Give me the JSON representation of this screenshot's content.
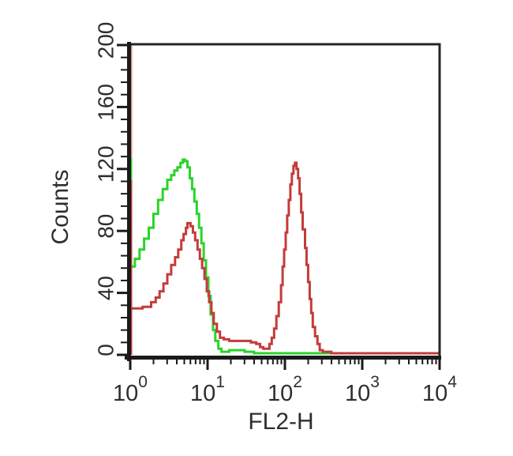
{
  "figure": {
    "background": "#ffffff",
    "plot_border_color": "#262626",
    "axis_color": "#1a1a1a",
    "tick_color": "#1a1a1a",
    "text_color": "#2e2e2e"
  },
  "chart_data": {
    "type": "line",
    "subtype": "flow-cytometry-histogram",
    "title": "",
    "xlabel": "FL2-H",
    "ylabel": "Counts",
    "x_scale": "log10",
    "x_range_log": [
      0,
      4
    ],
    "x_decades": [
      0,
      1,
      2,
      3,
      4
    ],
    "x_tick_labels": [
      {
        "base": "10",
        "exp": "0"
      },
      {
        "base": "10",
        "exp": "1"
      },
      {
        "base": "10",
        "exp": "2"
      },
      {
        "base": "10",
        "exp": "3"
      },
      {
        "base": "10",
        "exp": "4"
      }
    ],
    "x_minor_rule": "log positions 2-9 within each decade",
    "ylim": [
      0,
      200
    ],
    "y_major_step": 40,
    "y_minor_step": 8,
    "y_tick_labels": [
      "0",
      "40",
      "80",
      "120",
      "160",
      "200"
    ],
    "grid": false,
    "legend": "none",
    "series": [
      {
        "name": "green-control-trace",
        "color": "#2ad42a",
        "stroke_width": 3,
        "points_log10x_counts": [
          [
            0.01,
            57
          ],
          [
            0.06,
            62
          ],
          [
            0.12,
            68
          ],
          [
            0.18,
            75
          ],
          [
            0.24,
            82
          ],
          [
            0.3,
            91
          ],
          [
            0.36,
            100
          ],
          [
            0.42,
            107
          ],
          [
            0.48,
            113
          ],
          [
            0.53,
            116
          ],
          [
            0.57,
            119
          ],
          [
            0.61,
            121
          ],
          [
            0.65,
            124
          ],
          [
            0.68,
            126
          ],
          [
            0.71,
            125
          ],
          [
            0.74,
            121
          ],
          [
            0.77,
            114
          ],
          [
            0.8,
            107
          ],
          [
            0.83,
            99
          ],
          [
            0.86,
            91
          ],
          [
            0.89,
            82
          ],
          [
            0.92,
            72
          ],
          [
            0.95,
            61
          ],
          [
            0.98,
            50
          ],
          [
            1.01,
            38
          ],
          [
            1.04,
            26
          ],
          [
            1.07,
            16
          ],
          [
            1.1,
            9
          ],
          [
            1.14,
            4
          ],
          [
            1.18,
            2
          ],
          [
            1.28,
            3
          ],
          [
            1.38,
            3
          ],
          [
            1.48,
            2
          ],
          [
            1.6,
            1
          ],
          [
            2.0,
            1
          ],
          [
            2.5,
            1
          ],
          [
            3.0,
            1
          ],
          [
            3.5,
            1
          ],
          [
            4.0,
            1
          ]
        ]
      },
      {
        "name": "red-sample-trace",
        "color": "#c43b3b",
        "stroke_width": 3,
        "points_log10x_counts": [
          [
            0.01,
            30
          ],
          [
            0.1,
            30
          ],
          [
            0.16,
            31
          ],
          [
            0.21,
            31
          ],
          [
            0.27,
            34
          ],
          [
            0.33,
            37
          ],
          [
            0.38,
            41
          ],
          [
            0.43,
            46
          ],
          [
            0.48,
            52
          ],
          [
            0.53,
            58
          ],
          [
            0.58,
            63
          ],
          [
            0.62,
            68
          ],
          [
            0.66,
            74
          ],
          [
            0.69,
            78
          ],
          [
            0.72,
            82
          ],
          [
            0.74,
            85
          ],
          [
            0.78,
            83
          ],
          [
            0.81,
            79
          ],
          [
            0.84,
            74
          ],
          [
            0.87,
            68
          ],
          [
            0.9,
            62
          ],
          [
            0.93,
            56
          ],
          [
            0.96,
            49
          ],
          [
            0.99,
            41
          ],
          [
            1.02,
            34
          ],
          [
            1.05,
            27
          ],
          [
            1.08,
            20
          ],
          [
            1.12,
            15
          ],
          [
            1.16,
            11
          ],
          [
            1.21,
            10
          ],
          [
            1.28,
            9
          ],
          [
            1.36,
            9
          ],
          [
            1.46,
            9
          ],
          [
            1.56,
            8
          ],
          [
            1.63,
            7
          ],
          [
            1.68,
            5
          ],
          [
            1.72,
            4
          ],
          [
            1.77,
            4
          ],
          [
            1.8,
            7
          ],
          [
            1.83,
            11
          ],
          [
            1.86,
            17
          ],
          [
            1.89,
            25
          ],
          [
            1.92,
            34
          ],
          [
            1.95,
            45
          ],
          [
            1.97,
            57
          ],
          [
            1.99,
            68
          ],
          [
            2.01,
            79
          ],
          [
            2.03,
            90
          ],
          [
            2.05,
            100
          ],
          [
            2.07,
            110
          ],
          [
            2.09,
            117
          ],
          [
            2.11,
            122
          ],
          [
            2.13,
            124
          ],
          [
            2.15,
            120
          ],
          [
            2.17,
            114
          ],
          [
            2.19,
            104
          ],
          [
            2.21,
            92
          ],
          [
            2.23,
            81
          ],
          [
            2.26,
            69
          ],
          [
            2.28,
            58
          ],
          [
            2.3,
            47
          ],
          [
            2.32,
            36
          ],
          [
            2.34,
            27
          ],
          [
            2.36,
            18
          ],
          [
            2.39,
            12
          ],
          [
            2.42,
            7
          ],
          [
            2.45,
            3
          ],
          [
            2.49,
            2
          ],
          [
            2.6,
            1
          ],
          [
            3.0,
            1
          ],
          [
            3.5,
            1
          ],
          [
            4.0,
            1
          ]
        ]
      }
    ],
    "boundary_spikes": [
      {
        "name": "red-offscale-spike-faded",
        "x_log": 0,
        "from_count": 0,
        "to_count": 200,
        "color": "rgba(217,118,118,0.85)"
      },
      {
        "name": "red-offscale-spike-solid",
        "x_log": 0,
        "from_count": 0,
        "to_count": 113,
        "color": "#c43b3b"
      },
      {
        "name": "green-boundary-segment",
        "x_log": 0,
        "from_count": 113,
        "to_count": 127,
        "color": "#2ad42a"
      }
    ]
  }
}
